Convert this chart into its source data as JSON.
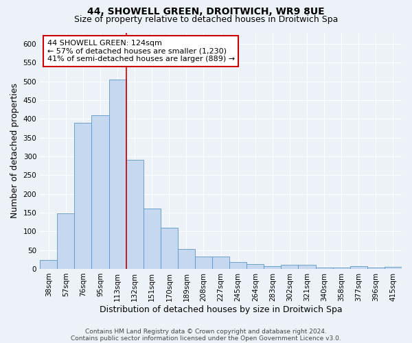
{
  "title": "44, SHOWELL GREEN, DROITWICH, WR9 8UE",
  "subtitle": "Size of property relative to detached houses in Droitwich Spa",
  "xlabel": "Distribution of detached houses by size in Droitwich Spa",
  "ylabel": "Number of detached properties",
  "categories": [
    "38sqm",
    "57sqm",
    "76sqm",
    "95sqm",
    "113sqm",
    "132sqm",
    "151sqm",
    "170sqm",
    "189sqm",
    "208sqm",
    "227sqm",
    "245sqm",
    "264sqm",
    "283sqm",
    "302sqm",
    "321sqm",
    "340sqm",
    "358sqm",
    "377sqm",
    "396sqm",
    "415sqm"
  ],
  "values": [
    23,
    148,
    390,
    410,
    505,
    290,
    160,
    110,
    53,
    32,
    32,
    18,
    12,
    8,
    10,
    10,
    4,
    4,
    8,
    4,
    5
  ],
  "bar_color": "#c5d8f0",
  "bar_edge_color": "#5a96c8",
  "vline_x_index": 5,
  "vline_color": "#cc0000",
  "annotation_line1": "44 SHOWELL GREEN: 124sqm",
  "annotation_line2": "← 57% of detached houses are smaller (1,230)",
  "annotation_line3": "41% of semi-detached houses are larger (889) →",
  "annotation_box_color": "#ffffff",
  "annotation_box_edge": "#cc0000",
  "ylim": [
    0,
    630
  ],
  "yticks": [
    0,
    50,
    100,
    150,
    200,
    250,
    300,
    350,
    400,
    450,
    500,
    550,
    600
  ],
  "footer_line1": "Contains HM Land Registry data © Crown copyright and database right 2024.",
  "footer_line2": "Contains public sector information licensed under the Open Government Licence v3.0.",
  "bg_color": "#edf2f9",
  "grid_color": "#ffffff",
  "title_fontsize": 10,
  "subtitle_fontsize": 9,
  "axis_label_fontsize": 9,
  "tick_fontsize": 7.5,
  "annotation_fontsize": 8,
  "footer_fontsize": 6.5
}
